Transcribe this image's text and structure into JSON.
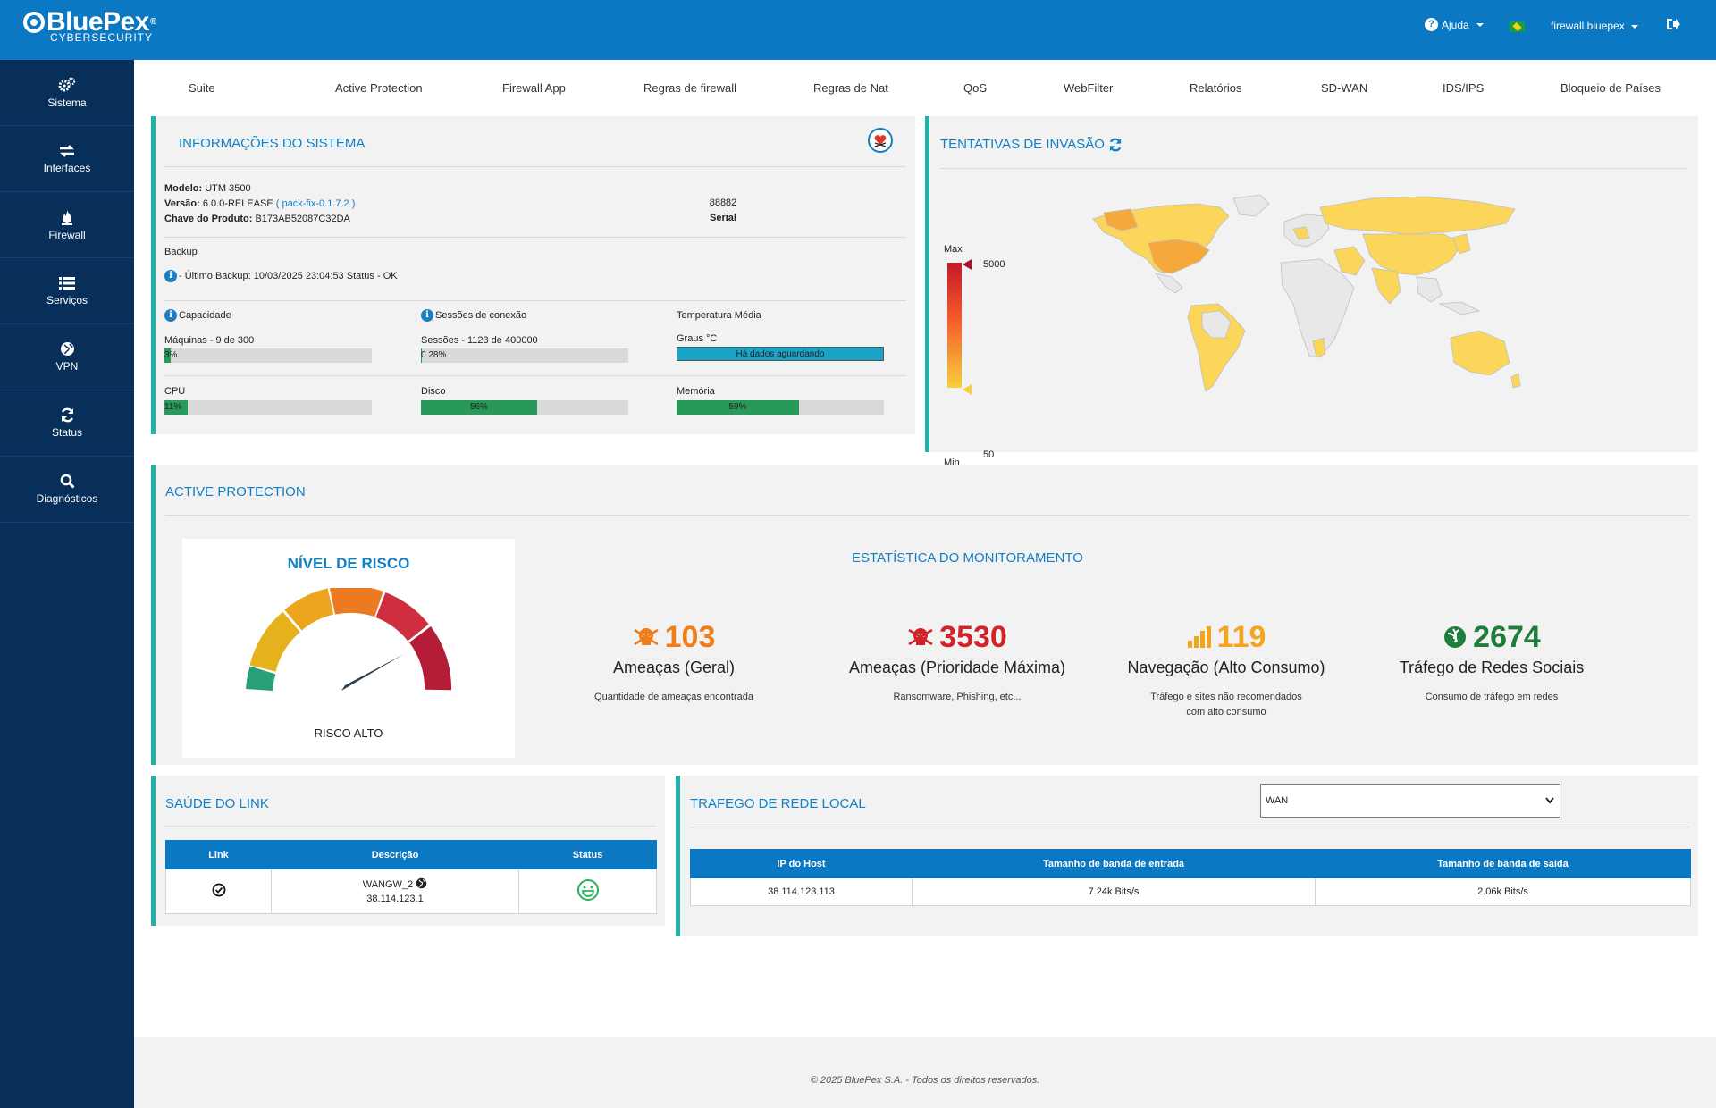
{
  "header": {
    "logo_brand": "BluePex",
    "logo_sub": "CYBERSECURITY",
    "help_label": "Ajuda",
    "user_label": "firewall.bluepex",
    "logout_icon": "logout-icon"
  },
  "sidebar": {
    "items": [
      {
        "label": "Sistema",
        "icon": "gears-icon"
      },
      {
        "label": "Interfaces",
        "icon": "exchange-icon"
      },
      {
        "label": "Firewall",
        "icon": "fire-icon"
      },
      {
        "label": "Serviços",
        "icon": "list-icon"
      },
      {
        "label": "VPN",
        "icon": "globe-icon"
      },
      {
        "label": "Status",
        "icon": "refresh-icon"
      },
      {
        "label": "Diagnósticos",
        "icon": "search-icon"
      }
    ]
  },
  "tabs": [
    "Suite",
    "Active Protection",
    "Firewall App",
    "Regras de firewall",
    "Regras de Nat",
    "QoS",
    "WebFilter",
    "Relatórios",
    "SD-WAN",
    "IDS/IPS",
    "Bloqueio de Países"
  ],
  "sysinfo": {
    "title": "INFORMAÇÕES DO SISTEMA",
    "model_label": "Modelo:",
    "model_value": "UTM 3500",
    "version_label": "Versão:",
    "version_value": "6.0.0-RELEASE",
    "version_link": "( pack-fix-0.1.7.2 )",
    "key_label": "Chave do Produto:",
    "key_value": "B173AB52087C32DA",
    "serial_value": "88882",
    "serial_label": "Serial",
    "backup_title": "Backup",
    "backup_text": "- Último Backup: 10/03/2025 23:04:53 Status - OK",
    "capacity_title": "Capacidade",
    "capacity_text": "Máquinas - 9 de 300",
    "capacity_pct_label": "3%",
    "capacity_pct": 3,
    "sessions_title": "Sessões de conexão",
    "sessions_text": "Sessões - 1123 de 400000",
    "sessions_pct_label": "0.28%",
    "sessions_pct": 0.28,
    "temp_title": "Temperatura Média",
    "temp_text": "Graus °C",
    "temp_status": "Há dados aguardando",
    "cpu_label": "CPU",
    "cpu_pct_label": "11%",
    "cpu_pct": 11,
    "disk_label": "Disco",
    "disk_pct_label": "56%",
    "disk_pct": 56,
    "mem_label": "Memória",
    "mem_pct_label": "59%",
    "mem_pct": 59
  },
  "invasion": {
    "title": "TENTATIVAS DE INVASÃO",
    "legend_max_label": "Max",
    "legend_min_label": "Min",
    "legend_max_value": "5000",
    "legend_min_value": "50"
  },
  "active_protection": {
    "title": "ACTIVE PROTECTION",
    "risk_title": "NÍVEL DE RISCO",
    "risk_label": "RISCO ALTO",
    "stats_title": "ESTATÍSTICA DO MONITORAMENTO",
    "stats": [
      {
        "value": "103",
        "label": "Ameaças (Geral)",
        "desc1": "Quantidade de ameaças encontrada",
        "desc2": "",
        "color": "#ef7d1a",
        "icon": "skull-icon"
      },
      {
        "value": "3530",
        "label": "Ameaças (Prioridade Máxima)",
        "desc1": "Ransomware, Phishing, etc...",
        "desc2": "",
        "color": "#d2232a",
        "icon": "skull-icon"
      },
      {
        "value": "119",
        "label": "Navegação (Alto Consumo)",
        "desc1": "Tráfego e sites não recomendados",
        "desc2": "com alto consumo",
        "color": "#f2a51d",
        "icon": "signal-icon"
      },
      {
        "value": "2674",
        "label": "Tráfego de Redes Sociais",
        "desc1": "Consumo de tráfego em redes",
        "desc2": "",
        "color": "#1e7d3a",
        "icon": "social-icon"
      }
    ]
  },
  "link_health": {
    "title": "SAÚDE DO LINK",
    "headers": [
      "Link",
      "Descrição",
      "Status"
    ],
    "row": {
      "name": "WANGW_2",
      "ip": "38.114.123.1"
    }
  },
  "local_traffic": {
    "title": "TRAFEGO DE REDE LOCAL",
    "select_value": "WAN",
    "headers": [
      "IP do Host",
      "Tamanho de banda de entrada",
      "Tamanho de banda de saída"
    ],
    "row": [
      "38.114.123.113",
      "7.24k Bits/s",
      "2.06k Bits/s"
    ]
  },
  "footer": {
    "text": "© 2025 BluePex S.A. - Todos os direitos reservados."
  },
  "colors": {
    "primary": "#0a78c3",
    "sidebar": "#072f5a",
    "accent": "#22b0a9",
    "bar_green": "#29995a",
    "temp_bar": "#1aa3c4"
  }
}
